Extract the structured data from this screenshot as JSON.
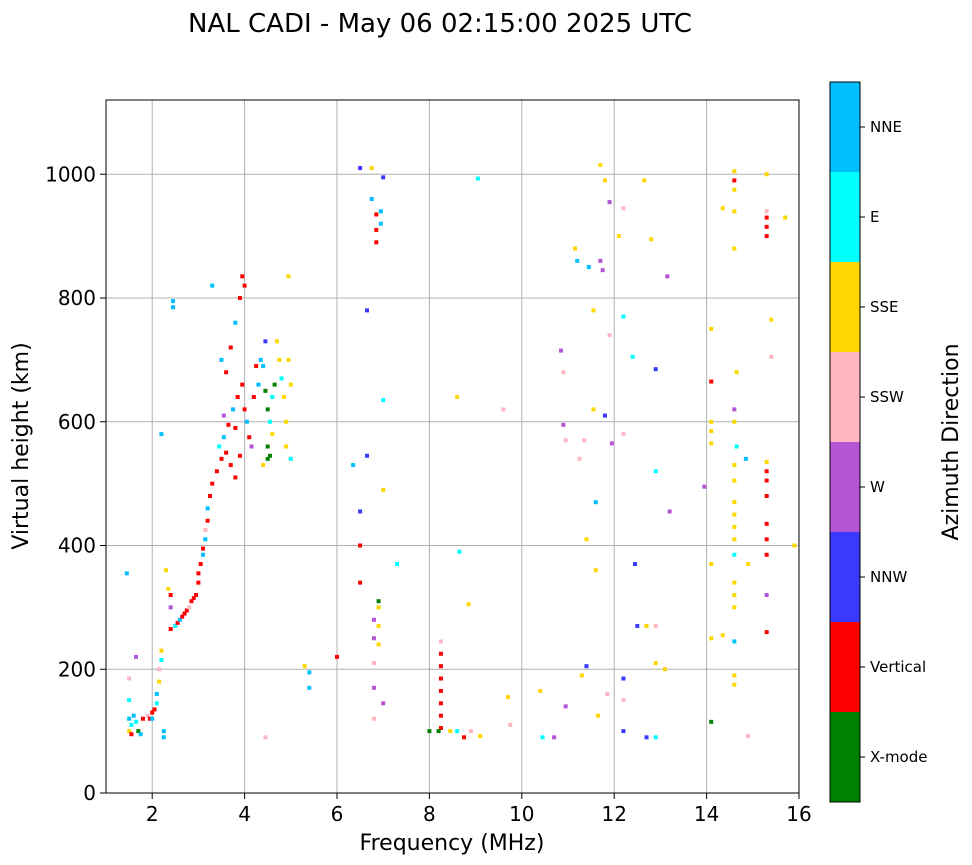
{
  "chart_data": {
    "type": "scatter",
    "title": "NAL CADI - May 06 02:15:00 2025 UTC",
    "xlabel": "Frequency (MHz)",
    "ylabel": "Virtual height (km)",
    "xlim": [
      1,
      16
    ],
    "ylim": [
      0,
      1120
    ],
    "xticks": [
      2,
      4,
      6,
      8,
      10,
      12,
      14,
      16
    ],
    "yticks": [
      0,
      200,
      400,
      600,
      800,
      1000
    ],
    "grid": true,
    "colorbar": {
      "title": "Azimuth Direction",
      "categories": [
        {
          "label": "X-mode",
          "color": "#008000"
        },
        {
          "label": "Vertical",
          "color": "#ff0000"
        },
        {
          "label": "NNW",
          "color": "#3a3aff"
        },
        {
          "label": "W",
          "color": "#b455d6"
        },
        {
          "label": "SSW",
          "color": "#ffb6c1"
        },
        {
          "label": "SSE",
          "color": "#ffd700"
        },
        {
          "label": "E",
          "color": "#00ffff"
        },
        {
          "label": "NNE",
          "color": "#00bfff"
        }
      ]
    },
    "points": [
      [
        1.45,
        355,
        "NNE"
      ],
      [
        1.5,
        185,
        "SSW"
      ],
      [
        1.5,
        150,
        "E"
      ],
      [
        1.5,
        120,
        "NNE"
      ],
      [
        1.55,
        110,
        "E"
      ],
      [
        1.5,
        100,
        "SSE"
      ],
      [
        1.55,
        95,
        "Vertical"
      ],
      [
        1.6,
        125,
        "NNE"
      ],
      [
        1.65,
        220,
        "W"
      ],
      [
        1.65,
        115,
        "E"
      ],
      [
        1.7,
        100,
        "X-mode"
      ],
      [
        1.75,
        95,
        "NNE"
      ],
      [
        1.8,
        120,
        "Vertical"
      ],
      [
        1.9,
        125,
        "SSW"
      ],
      [
        1.95,
        120,
        "Vertical"
      ],
      [
        2.0,
        130,
        "Vertical"
      ],
      [
        2.0,
        120,
        "NNE"
      ],
      [
        2.05,
        135,
        "Vertical"
      ],
      [
        2.1,
        145,
        "E"
      ],
      [
        2.1,
        160,
        "NNE"
      ],
      [
        2.15,
        180,
        "SSE"
      ],
      [
        2.15,
        200,
        "SSW"
      ],
      [
        2.2,
        230,
        "SSE"
      ],
      [
        2.2,
        215,
        "E"
      ],
      [
        2.25,
        100,
        "NNE"
      ],
      [
        2.25,
        90,
        "NNE"
      ],
      [
        2.2,
        580,
        "NNE"
      ],
      [
        2.3,
        360,
        "SSE"
      ],
      [
        2.35,
        330,
        "SSE"
      ],
      [
        2.4,
        320,
        "Vertical"
      ],
      [
        2.4,
        300,
        "W"
      ],
      [
        2.45,
        795,
        "NNE"
      ],
      [
        2.45,
        785,
        "NNE"
      ],
      [
        2.4,
        265,
        "Vertical"
      ],
      [
        2.5,
        270,
        "E"
      ],
      [
        2.55,
        275,
        "Vertical"
      ],
      [
        2.6,
        280,
        "NNE"
      ],
      [
        2.65,
        285,
        "Vertical"
      ],
      [
        2.7,
        290,
        "Vertical"
      ],
      [
        2.75,
        295,
        "Vertical"
      ],
      [
        2.8,
        300,
        "SSW"
      ],
      [
        2.85,
        310,
        "Vertical"
      ],
      [
        2.9,
        315,
        "Vertical"
      ],
      [
        2.95,
        320,
        "Vertical"
      ],
      [
        3.0,
        340,
        "Vertical"
      ],
      [
        3.0,
        355,
        "Vertical"
      ],
      [
        3.05,
        370,
        "Vertical"
      ],
      [
        3.1,
        385,
        "NNE"
      ],
      [
        3.1,
        395,
        "Vertical"
      ],
      [
        3.15,
        410,
        "NNE"
      ],
      [
        3.15,
        425,
        "SSW"
      ],
      [
        3.2,
        440,
        "Vertical"
      ],
      [
        3.2,
        460,
        "NNE"
      ],
      [
        3.25,
        480,
        "Vertical"
      ],
      [
        3.3,
        820,
        "NNE"
      ],
      [
        3.3,
        500,
        "Vertical"
      ],
      [
        3.4,
        520,
        "Vertical"
      ],
      [
        3.5,
        540,
        "Vertical"
      ],
      [
        3.6,
        550,
        "Vertical"
      ],
      [
        3.7,
        530,
        "Vertical"
      ],
      [
        3.8,
        510,
        "Vertical"
      ],
      [
        3.9,
        545,
        "Vertical"
      ],
      [
        3.45,
        560,
        "E"
      ],
      [
        3.55,
        575,
        "NNE"
      ],
      [
        3.65,
        595,
        "Vertical"
      ],
      [
        3.75,
        620,
        "NNE"
      ],
      [
        3.85,
        640,
        "Vertical"
      ],
      [
        3.95,
        660,
        "Vertical"
      ],
      [
        3.5,
        700,
        "NNE"
      ],
      [
        3.6,
        680,
        "Vertical"
      ],
      [
        3.7,
        720,
        "Vertical"
      ],
      [
        3.8,
        760,
        "NNE"
      ],
      [
        3.9,
        800,
        "Vertical"
      ],
      [
        3.95,
        835,
        "Vertical"
      ],
      [
        4.0,
        820,
        "Vertical"
      ],
      [
        3.55,
        610,
        "W"
      ],
      [
        3.8,
        590,
        "Vertical"
      ],
      [
        4.0,
        620,
        "Vertical"
      ],
      [
        4.05,
        600,
        "NNE"
      ],
      [
        4.1,
        575,
        "Vertical"
      ],
      [
        4.15,
        560,
        "W"
      ],
      [
        4.2,
        640,
        "Vertical"
      ],
      [
        4.25,
        690,
        "Vertical"
      ],
      [
        4.3,
        660,
        "NNE"
      ],
      [
        4.35,
        700,
        "NNE"
      ],
      [
        4.4,
        690,
        "NNE"
      ],
      [
        4.45,
        730,
        "NNW"
      ],
      [
        4.45,
        650,
        "X-mode"
      ],
      [
        4.5,
        620,
        "X-mode"
      ],
      [
        4.5,
        560,
        "X-mode"
      ],
      [
        4.55,
        545,
        "X-mode"
      ],
      [
        4.55,
        600,
        "E"
      ],
      [
        4.6,
        580,
        "SSE"
      ],
      [
        4.6,
        640,
        "E"
      ],
      [
        4.65,
        660,
        "X-mode"
      ],
      [
        4.7,
        730,
        "SSE"
      ],
      [
        4.75,
        700,
        "SSE"
      ],
      [
        4.8,
        670,
        "E"
      ],
      [
        4.85,
        640,
        "SSE"
      ],
      [
        4.9,
        600,
        "SSE"
      ],
      [
        4.9,
        560,
        "SSE"
      ],
      [
        4.95,
        700,
        "SSE"
      ],
      [
        5.0,
        660,
        "SSE"
      ],
      [
        4.95,
        835,
        "SSE"
      ],
      [
        5.0,
        540,
        "E"
      ],
      [
        4.45,
        90,
        "SSW"
      ],
      [
        4.5,
        540,
        "X-mode"
      ],
      [
        4.4,
        530,
        "SSE"
      ],
      [
        5.3,
        205,
        "SSE"
      ],
      [
        5.4,
        195,
        "NNE"
      ],
      [
        5.4,
        170,
        "NNE"
      ],
      [
        6.0,
        220,
        "Vertical"
      ],
      [
        6.35,
        530,
        "NNE"
      ],
      [
        6.5,
        1010,
        "NNW"
      ],
      [
        6.5,
        455,
        "NNW"
      ],
      [
        6.5,
        400,
        "Vertical"
      ],
      [
        6.5,
        340,
        "Vertical"
      ],
      [
        6.65,
        780,
        "NNW"
      ],
      [
        6.65,
        545,
        "NNW"
      ],
      [
        6.75,
        1010,
        "SSE"
      ],
      [
        6.75,
        960,
        "NNE"
      ],
      [
        6.8,
        280,
        "W"
      ],
      [
        6.8,
        250,
        "W"
      ],
      [
        6.8,
        210,
        "SSW"
      ],
      [
        6.8,
        170,
        "W"
      ],
      [
        6.85,
        935,
        "Vertical"
      ],
      [
        6.85,
        910,
        "Vertical"
      ],
      [
        6.85,
        890,
        "Vertical"
      ],
      [
        6.9,
        300,
        "SSE"
      ],
      [
        6.9,
        270,
        "SSE"
      ],
      [
        6.9,
        240,
        "SSE"
      ],
      [
        6.95,
        940,
        "NNE"
      ],
      [
        6.95,
        920,
        "NNE"
      ],
      [
        7.0,
        995,
        "NNW"
      ],
      [
        7.0,
        635,
        "E"
      ],
      [
        7.0,
        490,
        "SSE"
      ],
      [
        7.0,
        145,
        "W"
      ],
      [
        7.3,
        370,
        "E"
      ],
      [
        6.8,
        120,
        "SSW"
      ],
      [
        6.9,
        310,
        "X-mode"
      ],
      [
        8.25,
        245,
        "SSW"
      ],
      [
        8.25,
        225,
        "Vertical"
      ],
      [
        8.25,
        205,
        "Vertical"
      ],
      [
        8.25,
        185,
        "Vertical"
      ],
      [
        8.25,
        165,
        "Vertical"
      ],
      [
        8.25,
        145,
        "Vertical"
      ],
      [
        8.25,
        125,
        "Vertical"
      ],
      [
        8.25,
        105,
        "Vertical"
      ],
      [
        8.0,
        100,
        "X-mode"
      ],
      [
        8.2,
        100,
        "X-mode"
      ],
      [
        8.45,
        100,
        "SSE"
      ],
      [
        8.6,
        100,
        "E"
      ],
      [
        8.75,
        90,
        "Vertical"
      ],
      [
        8.9,
        100,
        "SSW"
      ],
      [
        9.1,
        92,
        "SSE"
      ],
      [
        8.6,
        640,
        "SSE"
      ],
      [
        8.65,
        390,
        "E"
      ],
      [
        8.85,
        305,
        "SSE"
      ],
      [
        9.05,
        993,
        "E"
      ],
      [
        9.6,
        620,
        "SSW"
      ],
      [
        9.7,
        155,
        "SSE"
      ],
      [
        9.75,
        110,
        "SSW"
      ],
      [
        10.4,
        165,
        "SSE"
      ],
      [
        10.45,
        90,
        "E"
      ],
      [
        10.7,
        90,
        "W"
      ],
      [
        10.85,
        715,
        "W"
      ],
      [
        10.9,
        680,
        "SSW"
      ],
      [
        10.9,
        595,
        "W"
      ],
      [
        10.95,
        570,
        "SSW"
      ],
      [
        10.95,
        140,
        "W"
      ],
      [
        11.15,
        880,
        "SSE"
      ],
      [
        11.2,
        860,
        "NNE"
      ],
      [
        11.25,
        540,
        "SSW"
      ],
      [
        11.3,
        190,
        "SSE"
      ],
      [
        11.35,
        570,
        "SSW"
      ],
      [
        11.4,
        410,
        "SSE"
      ],
      [
        11.4,
        205,
        "NNW"
      ],
      [
        11.45,
        850,
        "NNE"
      ],
      [
        11.55,
        780,
        "SSE"
      ],
      [
        11.55,
        620,
        "SSE"
      ],
      [
        11.6,
        470,
        "NNE"
      ],
      [
        11.6,
        360,
        "SSE"
      ],
      [
        11.65,
        125,
        "SSE"
      ],
      [
        11.7,
        1015,
        "SSE"
      ],
      [
        11.7,
        860,
        "W"
      ],
      [
        11.75,
        845,
        "W"
      ],
      [
        11.8,
        990,
        "SSE"
      ],
      [
        11.8,
        610,
        "NNW"
      ],
      [
        11.85,
        160,
        "SSW"
      ],
      [
        11.9,
        955,
        "W"
      ],
      [
        11.9,
        740,
        "SSW"
      ],
      [
        11.95,
        565,
        "W"
      ],
      [
        12.1,
        900,
        "SSE"
      ],
      [
        12.2,
        945,
        "SSW"
      ],
      [
        12.2,
        770,
        "E"
      ],
      [
        12.2,
        580,
        "SSW"
      ],
      [
        12.2,
        185,
        "NNW"
      ],
      [
        12.2,
        150,
        "SSW"
      ],
      [
        12.2,
        100,
        "NNW"
      ],
      [
        12.4,
        705,
        "E"
      ],
      [
        12.45,
        370,
        "NNW"
      ],
      [
        12.5,
        270,
        "NNW"
      ],
      [
        12.65,
        990,
        "SSE"
      ],
      [
        12.7,
        270,
        "SSE"
      ],
      [
        12.8,
        895,
        "SSE"
      ],
      [
        12.9,
        685,
        "NNW"
      ],
      [
        12.9,
        520,
        "E"
      ],
      [
        12.9,
        210,
        "SSE"
      ],
      [
        12.7,
        90,
        "NNW"
      ],
      [
        12.9,
        90,
        "E"
      ],
      [
        12.9,
        270,
        "SSW"
      ],
      [
        13.15,
        835,
        "W"
      ],
      [
        13.2,
        455,
        "W"
      ],
      [
        13.1,
        200,
        "SSE"
      ],
      [
        13.95,
        495,
        "W"
      ],
      [
        14.1,
        750,
        "SSE"
      ],
      [
        14.1,
        665,
        "Vertical"
      ],
      [
        14.1,
        600,
        "SSE"
      ],
      [
        14.1,
        585,
        "SSE"
      ],
      [
        14.1,
        565,
        "SSE"
      ],
      [
        14.1,
        370,
        "SSE"
      ],
      [
        14.1,
        250,
        "SSE"
      ],
      [
        14.1,
        115,
        "X-mode"
      ],
      [
        14.35,
        945,
        "SSE"
      ],
      [
        14.35,
        255,
        "SSE"
      ],
      [
        14.6,
        1005,
        "SSE"
      ],
      [
        14.6,
        990,
        "Vertical"
      ],
      [
        14.6,
        975,
        "SSE"
      ],
      [
        14.6,
        940,
        "SSE"
      ],
      [
        14.6,
        880,
        "SSE"
      ],
      [
        14.65,
        680,
        "SSE"
      ],
      [
        14.6,
        620,
        "W"
      ],
      [
        14.6,
        600,
        "SSE"
      ],
      [
        14.65,
        560,
        "E"
      ],
      [
        14.6,
        530,
        "SSE"
      ],
      [
        14.6,
        505,
        "SSE"
      ],
      [
        14.6,
        470,
        "SSE"
      ],
      [
        14.6,
        450,
        "SSE"
      ],
      [
        14.6,
        430,
        "SSE"
      ],
      [
        14.6,
        410,
        "SSE"
      ],
      [
        14.6,
        385,
        "E"
      ],
      [
        14.6,
        340,
        "SSE"
      ],
      [
        14.6,
        320,
        "SSE"
      ],
      [
        14.6,
        300,
        "SSE"
      ],
      [
        14.6,
        245,
        "NNE"
      ],
      [
        14.6,
        190,
        "SSE"
      ],
      [
        14.6,
        175,
        "SSE"
      ],
      [
        14.85,
        540,
        "NNE"
      ],
      [
        14.9,
        370,
        "SSE"
      ],
      [
        14.9,
        92,
        "SSW"
      ],
      [
        15.3,
        1000,
        "SSE"
      ],
      [
        15.3,
        940,
        "SSW"
      ],
      [
        15.3,
        930,
        "Vertical"
      ],
      [
        15.3,
        915,
        "Vertical"
      ],
      [
        15.3,
        900,
        "Vertical"
      ],
      [
        15.4,
        765,
        "SSE"
      ],
      [
        15.4,
        705,
        "SSW"
      ],
      [
        15.3,
        535,
        "SSE"
      ],
      [
        15.3,
        520,
        "Vertical"
      ],
      [
        15.3,
        505,
        "Vertical"
      ],
      [
        15.3,
        480,
        "Vertical"
      ],
      [
        15.3,
        435,
        "Vertical"
      ],
      [
        15.3,
        410,
        "Vertical"
      ],
      [
        15.3,
        385,
        "Vertical"
      ],
      [
        15.3,
        320,
        "W"
      ],
      [
        15.3,
        260,
        "Vertical"
      ],
      [
        15.7,
        930,
        "SSE"
      ],
      [
        15.9,
        400,
        "SSE"
      ]
    ]
  }
}
